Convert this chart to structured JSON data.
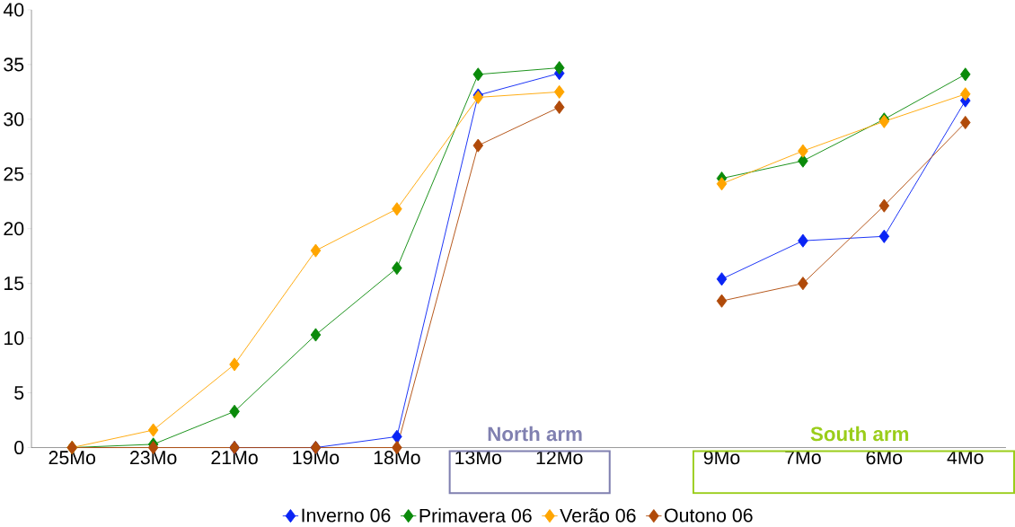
{
  "chart_data": {
    "type": "line",
    "categories": [
      "25Mo",
      "23Mo",
      "21Mo",
      "19Mo",
      "18Mo",
      "13Mo",
      "12Mo",
      null,
      "9Mo",
      "7Mo",
      "6Mo",
      "4Mo"
    ],
    "series": [
      {
        "name": "Inverno 06",
        "color": "#0a24f5",
        "values": [
          null,
          null,
          0,
          0,
          1,
          32.2,
          34.2,
          null,
          15.4,
          18.9,
          19.3,
          31.7
        ]
      },
      {
        "name": "Primavera 06",
        "color": "#0a8a0a",
        "values": [
          0,
          0.3,
          3.3,
          10.3,
          16.4,
          34.1,
          34.7,
          null,
          24.6,
          26.2,
          30,
          34.1
        ]
      },
      {
        "name": "Verão 06",
        "color": "#ffa500",
        "values": [
          0,
          1.6,
          7.6,
          18,
          21.8,
          32,
          32.5,
          null,
          24.1,
          27.1,
          29.8,
          32.3
        ]
      },
      {
        "name": "Outono 06",
        "color": "#b04a0a",
        "values": [
          0,
          0,
          0,
          0,
          0,
          27.6,
          31.1,
          null,
          13.4,
          15,
          22.1,
          29.7
        ]
      }
    ],
    "ylim": [
      0,
      40
    ],
    "yticks": [
      0,
      5,
      10,
      15,
      20,
      25,
      30,
      35,
      40
    ],
    "grid": false,
    "legend": "bottom",
    "marker": "diamond",
    "line_style": "solid",
    "annotations": [
      "North arm",
      "South arm"
    ]
  }
}
